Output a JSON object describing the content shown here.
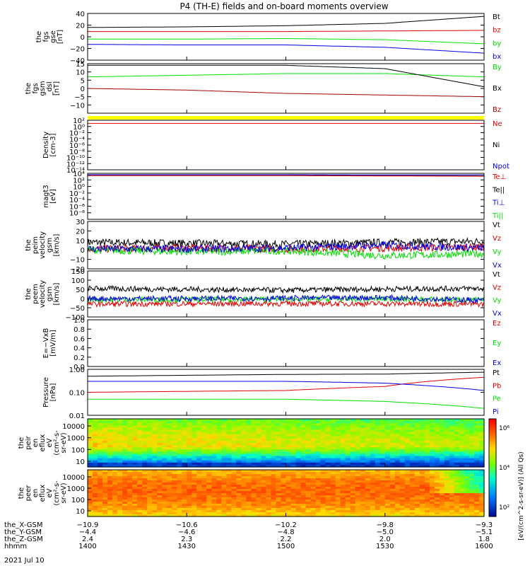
{
  "title": "P4 (TH-E) fields and on-board moments overview",
  "colors": {
    "black": "#000000",
    "red": "#e00000",
    "green": "#00e000",
    "blue": "#0000e0",
    "darkred": "#a00000",
    "yellow": "#ffff00"
  },
  "panels": [
    {
      "ylabel": [
        "the",
        "fgs",
        "gse",
        "[nT]"
      ],
      "ylim": [
        -40,
        40
      ],
      "ticks": [
        "40",
        "20",
        "0",
        "−20",
        "−40"
      ],
      "tickvals": [
        40,
        20,
        0,
        -20,
        -40
      ],
      "legend": [
        {
          "name": "Bt",
          "color": "black"
        },
        {
          "name": "bz",
          "color": "red"
        },
        {
          "name": "by",
          "color": "green"
        },
        {
          "name": "bx",
          "color": "blue"
        }
      ]
    },
    {
      "ylabel": [
        "the",
        "fgs",
        "gsm",
        "_dsl",
        "[nT]"
      ],
      "ylim": [
        -15,
        15
      ],
      "ticks": [
        "15",
        "10",
        "5",
        "0",
        "−5",
        "−10"
      ],
      "tickvals": [
        15,
        10,
        5,
        0,
        -5,
        -10
      ],
      "legend": [
        {
          "name": "By",
          "color": "green"
        },
        {
          "name": "Bx",
          "color": "black"
        },
        {
          "name": "Bz",
          "color": "darkred"
        }
      ]
    },
    {
      "ylabel": [
        "Density",
        "[cm-3]"
      ],
      "ylim": [
        -14,
        2
      ],
      "ticks": [
        "10²",
        "10⁰",
        "10⁻²",
        "10⁻⁴",
        "10⁻⁶",
        "10⁻⁸",
        "10⁻¹⁰",
        "10⁻¹²",
        "10⁻¹⁴"
      ],
      "tickvals": [
        2,
        0,
        -2,
        -4,
        -6,
        -8,
        -10,
        -12,
        -14
      ],
      "legend": [
        {
          "name": "Ne",
          "color": "red"
        },
        {
          "name": "Ni",
          "color": "black"
        },
        {
          "name": "Npot",
          "color": "blue"
        }
      ]
    },
    {
      "ylabel": [
        "magt3",
        "[eV]"
      ],
      "ylim": [
        -10,
        4
      ],
      "ticks": [
        "10⁴",
        "10²",
        "10⁰",
        "10⁻²",
        "10⁻⁴",
        "10⁻⁶",
        "10⁻⁸"
      ],
      "tickvals": [
        4,
        2,
        0,
        -2,
        -4,
        -6,
        -8
      ],
      "legend": [
        {
          "name": "Te⊥",
          "color": "red"
        },
        {
          "name": "Te||",
          "color": "black"
        },
        {
          "name": "Ti⊥",
          "color": "blue"
        },
        {
          "name": "Ti||",
          "color": "green"
        }
      ]
    },
    {
      "ylabel": [
        "the",
        "peim",
        "velocity",
        "gsm",
        "[km/s]"
      ],
      "ylim": [
        -20,
        30
      ],
      "ticks": [
        "30",
        "20",
        "10",
        "0",
        "−10",
        "−20"
      ],
      "tickvals": [
        30,
        20,
        10,
        0,
        -10,
        -20
      ],
      "legend": [
        {
          "name": "Vt",
          "color": "black"
        },
        {
          "name": "Vz",
          "color": "red"
        },
        {
          "name": "Vy",
          "color": "green"
        },
        {
          "name": "Vx",
          "color": "blue"
        }
      ]
    },
    {
      "ylabel": [
        "the",
        "peem",
        "velocity",
        "gsm",
        "[km/s]"
      ],
      "ylim": [
        -100,
        150
      ],
      "ticks": [
        "150",
        "100",
        "50",
        "0",
        "−50",
        "−100"
      ],
      "tickvals": [
        150,
        100,
        50,
        0,
        -50,
        -100
      ],
      "legend": [
        {
          "name": "Vt",
          "color": "black"
        },
        {
          "name": "Vz",
          "color": "red"
        },
        {
          "name": "Vy",
          "color": "green"
        },
        {
          "name": "Vx",
          "color": "blue"
        }
      ]
    },
    {
      "ylabel": [
        "E=−VxB",
        "[mV/m]"
      ],
      "ylim": [
        0,
        1
      ],
      "ticks": [
        "1.0",
        "0.8",
        "0.6",
        "0.4",
        "0.2",
        "0.0"
      ],
      "tickvals": [
        1,
        0.8,
        0.6,
        0.4,
        0.2,
        0
      ],
      "legend": [
        {
          "name": "Ez",
          "color": "red"
        },
        {
          "name": "Ey",
          "color": "green"
        },
        {
          "name": "Ex",
          "color": "blue"
        }
      ]
    },
    {
      "ylabel": [
        "Pressure",
        "[nPa]"
      ],
      "ylim": [
        -2,
        0
      ],
      "ticks": [
        "1.00",
        "0.10",
        "0.01"
      ],
      "tickvals": [
        0,
        -1,
        -2
      ],
      "legend": [
        {
          "name": "Pt",
          "color": "black"
        },
        {
          "name": "Pb",
          "color": "red"
        },
        {
          "name": "Pe",
          "color": "green"
        },
        {
          "name": "Pi",
          "color": "blue"
        }
      ]
    },
    {
      "ylabel": [
        "the",
        "peir",
        "en",
        "eflux",
        "eV",
        "(cm²-s-",
        "sr-eV)"
      ],
      "ticks": [
        "10000",
        "1000",
        "100",
        "10"
      ]
    },
    {
      "ylabel": [
        "the",
        "peer",
        "en",
        "eflux",
        "eV",
        "(cm²-s-",
        "sr-eV)"
      ],
      "ticks": [
        "10000",
        "1000",
        "100",
        "10"
      ]
    }
  ],
  "colorbar": {
    "ticks": [
      "10⁶",
      "10⁴",
      "10²"
    ],
    "label": "[eV/(cm^2-s-sr-eV)] (All Qs)"
  },
  "xaxis": {
    "rows": [
      {
        "label": "the_X-GSM",
        "values": [
          "−10.9",
          "−10.6",
          "−10.2",
          "−9.8",
          "−9.3"
        ]
      },
      {
        "label": "the_Y-GSM",
        "values": [
          "−4.4",
          "−4.6",
          "−4.8",
          "−5.0",
          "−5.1"
        ]
      },
      {
        "label": "the_Z-GSM",
        "values": [
          "2.4",
          "2.3",
          "2.2",
          "2.0",
          "1.8"
        ]
      },
      {
        "label": "hhmm",
        "values": [
          "1400",
          "1430",
          "1500",
          "1530",
          "1600"
        ]
      }
    ],
    "date": "2021 Jul 10"
  },
  "chart_data": [
    {
      "type": "line",
      "xlabel": "hhmm",
      "x": [
        "1400",
        "1430",
        "1500",
        "1530",
        "1600"
      ],
      "ylabel": "the fgs gse [nT]",
      "ylim": [
        -40,
        40
      ],
      "series": [
        {
          "name": "Bt",
          "values": [
            16,
            17,
            19,
            23,
            35
          ]
        },
        {
          "name": "bz",
          "values": [
            9,
            9,
            9,
            10,
            11
          ]
        },
        {
          "name": "by",
          "values": [
            -4,
            -4,
            -3,
            -5,
            -12
          ]
        },
        {
          "name": "bx",
          "values": [
            -13,
            -14,
            -14,
            -18,
            -28
          ]
        }
      ]
    },
    {
      "type": "line",
      "xlabel": "hhmm",
      "x": [
        "1400",
        "1430",
        "1500",
        "1530",
        "1600"
      ],
      "ylabel": "the fgs gsm_dsl [nT]",
      "ylim": [
        -15,
        15
      ],
      "series": [
        {
          "name": "By",
          "values": [
            7,
            8,
            9,
            9,
            7
          ]
        },
        {
          "name": "Bx",
          "values": [
            14,
            14,
            14,
            12,
            1
          ]
        },
        {
          "name": "Bz",
          "values": [
            0,
            -1,
            -3,
            -4,
            -5
          ]
        }
      ]
    },
    {
      "type": "line",
      "xlabel": "hhmm",
      "x": [
        "1400",
        "1430",
        "1500",
        "1530",
        "1600"
      ],
      "ylabel": "Density [cm-3]",
      "ylim": [
        -14,
        2
      ],
      "series": [
        {
          "name": "Ne",
          "values": [
            1,
            1,
            1,
            1,
            1
          ]
        }
      ]
    },
    {
      "type": "line",
      "xlabel": "hhmm",
      "x": [
        "1400",
        "1430",
        "1500",
        "1530",
        "1600"
      ],
      "ylabel": "magt3 [eV]",
      "ylim": [
        -10,
        4
      ],
      "series": [
        {
          "name": "Te||",
          "values": [
            3.5,
            3.5,
            3.5,
            3.4,
            3.4
          ]
        },
        {
          "name": "Ti⊥",
          "values": [
            3.6,
            3.6,
            3.6,
            3.5,
            3.5
          ]
        },
        {
          "name": "Te⊥",
          "values": [
            3.3,
            3.3,
            3.3,
            3.2,
            3.1
          ]
        }
      ]
    },
    {
      "type": "line",
      "xlabel": "hhmm",
      "x": [
        "1400",
        "1430",
        "1500",
        "1530",
        "1600"
      ],
      "ylabel": "the peim velocity gsm [km/s]",
      "ylim": [
        -20,
        30
      ],
      "series": [
        {
          "name": "Vt",
          "values": [
            8,
            7,
            6,
            8,
            9
          ]
        },
        {
          "name": "Vz",
          "values": [
            1,
            2,
            1,
            2,
            3
          ]
        },
        {
          "name": "Vy",
          "values": [
            0,
            -2,
            -1,
            -6,
            -4
          ]
        },
        {
          "name": "Vx",
          "values": [
            1,
            1,
            2,
            5,
            2
          ]
        }
      ]
    },
    {
      "type": "line",
      "xlabel": "hhmm",
      "x": [
        "1400",
        "1430",
        "1500",
        "1530",
        "1600"
      ],
      "ylabel": "the peem velocity gsm [km/s]",
      "ylim": [
        -100,
        150
      ],
      "series": [
        {
          "name": "Vt",
          "values": [
            55,
            50,
            45,
            52,
            55
          ]
        },
        {
          "name": "Vz",
          "values": [
            -30,
            -28,
            -27,
            -28,
            -30
          ]
        },
        {
          "name": "Vy",
          "values": [
            -5,
            -5,
            -3,
            -2,
            -8
          ]
        },
        {
          "name": "Vx",
          "values": [
            0,
            0,
            2,
            5,
            -10
          ]
        }
      ]
    },
    {
      "type": "line",
      "xlabel": "hhmm",
      "x": [
        "1400",
        "1430",
        "1500",
        "1530",
        "1600"
      ],
      "ylabel": "E=−VxB [mV/m]",
      "ylim": [
        0,
        1
      ],
      "series": []
    },
    {
      "type": "line",
      "xlabel": "hhmm",
      "x": [
        "1400",
        "1430",
        "1500",
        "1530",
        "1600"
      ],
      "ylabel": "Pressure [nPa]",
      "ylim": [
        0.01,
        1
      ],
      "yscale": "log",
      "series": [
        {
          "name": "Pt",
          "values": [
            0.5,
            0.55,
            0.6,
            0.62,
            0.75
          ]
        },
        {
          "name": "Pb",
          "values": [
            0.1,
            0.11,
            0.12,
            0.18,
            0.45
          ]
        },
        {
          "name": "Pe",
          "values": [
            0.05,
            0.05,
            0.05,
            0.04,
            0.02
          ]
        },
        {
          "name": "Pi",
          "values": [
            0.3,
            0.3,
            0.3,
            0.25,
            0.12
          ]
        }
      ]
    },
    {
      "type": "heatmap",
      "ylabel": "the peir en eflux",
      "yscale": "log",
      "ylim": [
        5,
        20000
      ],
      "x": [
        "1400",
        "1430",
        "1500",
        "1530",
        "1600"
      ]
    },
    {
      "type": "heatmap",
      "ylabel": "the peer en eflux",
      "yscale": "log",
      "ylim": [
        5,
        20000
      ],
      "x": [
        "1400",
        "1430",
        "1500",
        "1530",
        "1600"
      ]
    }
  ]
}
